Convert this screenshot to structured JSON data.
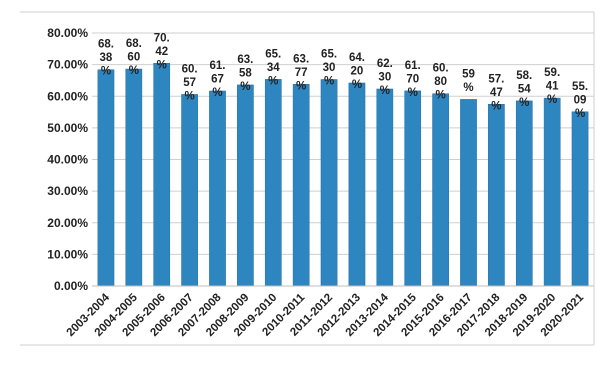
{
  "chart_data": {
    "type": "bar",
    "categories": [
      "2003-2004",
      "2004-2005",
      "2005-2006",
      "2006-2007",
      "2007-2008",
      "2008-2009",
      "2009-2010",
      "2010-2011",
      "2011-2012",
      "2012-2013",
      "2013-2014",
      "2014-2015",
      "2015-2016",
      "2016-2017",
      "2017-2018",
      "2018-2019",
      "2019-2020",
      "2020-2021"
    ],
    "values": [
      68.38,
      68.6,
      70.42,
      60.57,
      61.67,
      63.58,
      65.34,
      63.77,
      65.3,
      64.2,
      62.3,
      61.7,
      60.8,
      59.0,
      57.47,
      58.54,
      59.41,
      55.09
    ],
    "data_labels": [
      [
        "68.",
        "38",
        "%"
      ],
      [
        "68.",
        "60",
        "%"
      ],
      [
        "70.",
        "42",
        "%"
      ],
      [
        "60.",
        "57",
        "%"
      ],
      [
        "61.",
        "67",
        "%"
      ],
      [
        "63.",
        "58",
        "%"
      ],
      [
        "65.",
        "34",
        "%"
      ],
      [
        "63.",
        "77",
        "%"
      ],
      [
        "65.",
        "30",
        "%"
      ],
      [
        "64.",
        "20",
        "%"
      ],
      [
        "62.",
        "30",
        "%"
      ],
      [
        "61.",
        "70",
        "%"
      ],
      [
        "60.",
        "80",
        "%"
      ],
      [
        "59",
        "%"
      ],
      [
        "57.",
        "47",
        "%"
      ],
      [
        "58.",
        "54",
        "%"
      ],
      [
        "59.",
        "41",
        "%"
      ],
      [
        "55.",
        "09",
        "%"
      ]
    ],
    "title": "",
    "xlabel": "",
    "ylabel": "",
    "ylim": [
      0,
      80
    ],
    "yticks": [
      "0.00%",
      "10.00%",
      "20.00%",
      "30.00%",
      "40.00%",
      "50.00%",
      "60.00%",
      "70.00%",
      "80.00%"
    ],
    "grid": true,
    "bar_color": "#2e86c1"
  }
}
